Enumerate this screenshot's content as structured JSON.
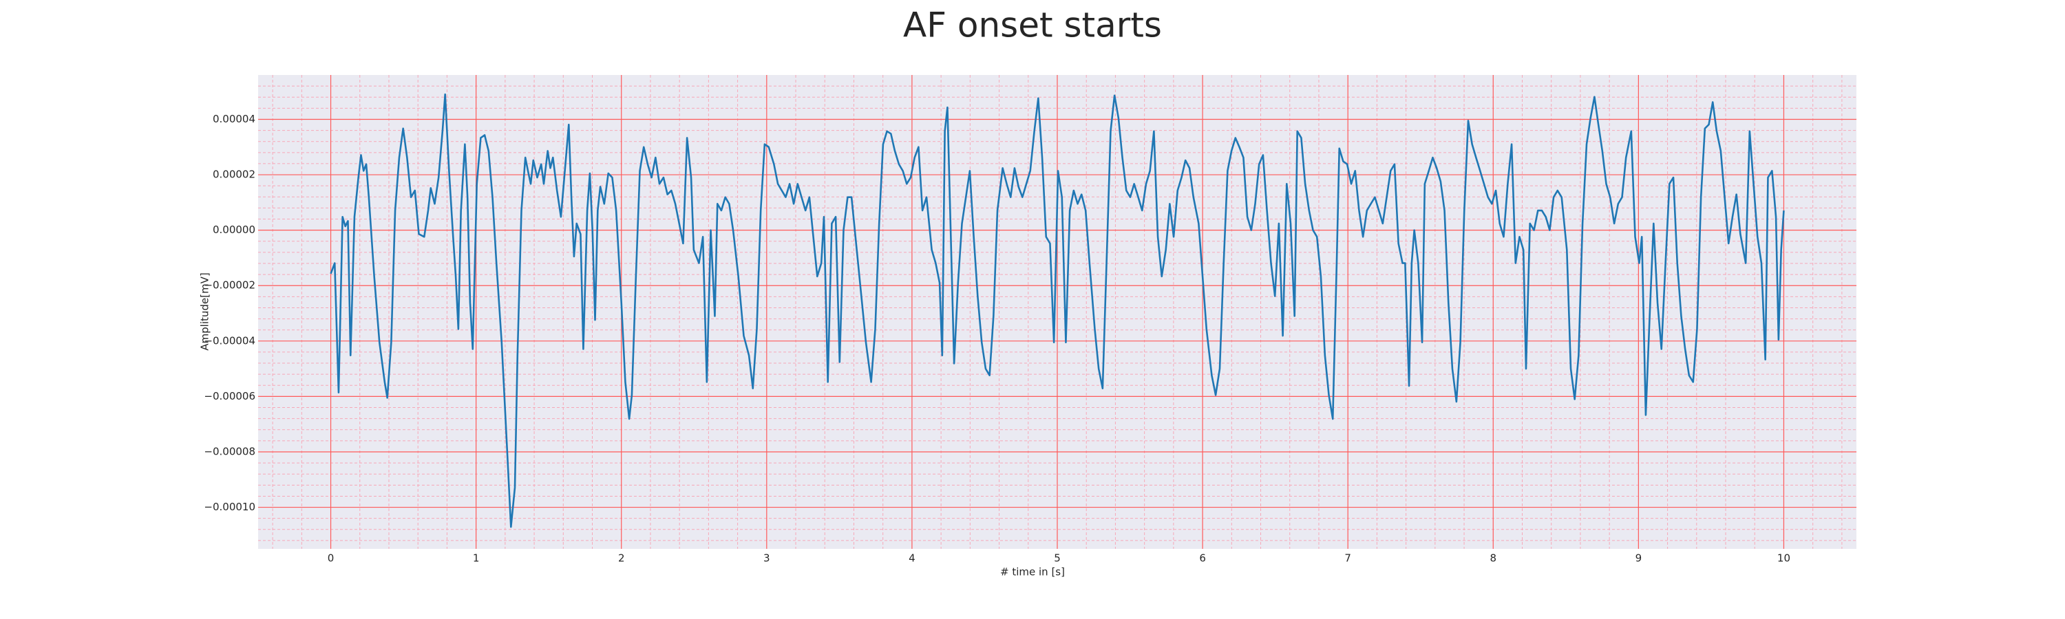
{
  "chart_data": {
    "type": "line",
    "title": "AF onset starts",
    "x_label": "# time in [s]",
    "y_label": "Amplitude[mV]",
    "color": "#1f77b4",
    "grid": true,
    "minor_grid": true,
    "xlim": [
      -0.5,
      10.5
    ],
    "ylim": [
      -0.000115,
      5.6e-05
    ],
    "xticks": [
      0,
      1,
      2,
      3,
      4,
      5,
      6,
      7,
      8,
      9,
      10
    ],
    "yticks": [
      {
        "value": 4e-05,
        "label": "0.00004"
      },
      {
        "value": 2e-05,
        "label": "0.00002"
      },
      {
        "value": 0,
        "label": "0.00000"
      },
      {
        "value": -2e-05,
        "label": "−0.00002"
      },
      {
        "value": -4e-05,
        "label": "−0.00004"
      },
      {
        "value": -6e-05,
        "label": "−0.00006"
      },
      {
        "value": -8e-05,
        "label": "−0.00008"
      },
      {
        "value": -0.0001,
        "label": "−0.00010"
      }
    ],
    "x": [
      0,
      0.027,
      0.054,
      0.081,
      0.1,
      0.118,
      0.136,
      0.163,
      0.19,
      0.208,
      0.226,
      0.244,
      0.262,
      0.299,
      0.335,
      0.371,
      0.389,
      0.416,
      0.443,
      0.471,
      0.498,
      0.525,
      0.552,
      0.579,
      0.606,
      0.643,
      0.67,
      0.688,
      0.715,
      0.742,
      0.769,
      0.787,
      0.814,
      0.842,
      0.86,
      0.878,
      0.896,
      0.923,
      0.941,
      0.959,
      0.977,
      1.005,
      1.032,
      1.059,
      1.086,
      1.113,
      1.14,
      1.176,
      1.213,
      1.24,
      1.267,
      1.285,
      1.312,
      1.339,
      1.357,
      1.376,
      1.394,
      1.421,
      1.448,
      1.466,
      1.493,
      1.511,
      1.529,
      1.557,
      1.584,
      1.611,
      1.638,
      1.656,
      1.674,
      1.692,
      1.719,
      1.738,
      1.765,
      1.783,
      1.801,
      1.819,
      1.837,
      1.855,
      1.882,
      1.91,
      1.937,
      1.964,
      2.0,
      2.027,
      2.054,
      2.072,
      2.1,
      2.127,
      2.154,
      2.181,
      2.208,
      2.235,
      2.262,
      2.29,
      2.317,
      2.344,
      2.371,
      2.398,
      2.425,
      2.452,
      2.48,
      2.498,
      2.534,
      2.561,
      2.588,
      2.615,
      2.643,
      2.661,
      2.688,
      2.715,
      2.742,
      2.769,
      2.805,
      2.842,
      2.878,
      2.905,
      2.932,
      2.959,
      2.986,
      3.014,
      3.05,
      3.077,
      3.104,
      3.131,
      3.158,
      3.186,
      3.213,
      3.24,
      3.267,
      3.294,
      3.321,
      3.348,
      3.376,
      3.394,
      3.421,
      3.448,
      3.475,
      3.502,
      3.529,
      3.557,
      3.584,
      3.611,
      3.647,
      3.683,
      3.719,
      3.747,
      3.774,
      3.801,
      3.828,
      3.855,
      3.882,
      3.91,
      3.937,
      3.964,
      3.991,
      4.018,
      4.045,
      4.072,
      4.1,
      4.136,
      4.163,
      4.19,
      4.208,
      4.226,
      4.244,
      4.271,
      4.29,
      4.317,
      4.344,
      4.371,
      4.398,
      4.425,
      4.452,
      4.48,
      4.507,
      4.534,
      4.561,
      4.588,
      4.624,
      4.652,
      4.679,
      4.706,
      4.733,
      4.76,
      4.787,
      4.814,
      4.842,
      4.869,
      4.896,
      4.923,
      4.95,
      4.977,
      5.005,
      5.032,
      5.059,
      5.086,
      5.113,
      5.14,
      5.167,
      5.195,
      5.222,
      5.258,
      5.285,
      5.312,
      5.339,
      5.367,
      5.394,
      5.421,
      5.448,
      5.475,
      5.502,
      5.529,
      5.557,
      5.584,
      5.611,
      5.638,
      5.665,
      5.692,
      5.719,
      5.747,
      5.774,
      5.801,
      5.828,
      5.855,
      5.882,
      5.91,
      5.937,
      5.973,
      6.0,
      6.027,
      6.063,
      6.09,
      6.118,
      6.145,
      6.172,
      6.199,
      6.226,
      6.253,
      6.281,
      6.308,
      6.335,
      6.362,
      6.389,
      6.416,
      6.443,
      6.471,
      6.498,
      6.525,
      6.552,
      6.579,
      6.606,
      6.633,
      6.652,
      6.679,
      6.706,
      6.733,
      6.76,
      6.787,
      6.814,
      6.842,
      6.869,
      6.896,
      6.923,
      6.941,
      6.968,
      6.995,
      7.023,
      7.05,
      7.077,
      7.104,
      7.131,
      7.158,
      7.186,
      7.213,
      7.24,
      7.267,
      7.294,
      7.321,
      7.348,
      7.376,
      7.394,
      7.421,
      7.439,
      7.457,
      7.484,
      7.511,
      7.529,
      7.557,
      7.584,
      7.611,
      7.638,
      7.665,
      7.692,
      7.719,
      7.747,
      7.774,
      7.801,
      7.828,
      7.855,
      7.882,
      7.91,
      7.937,
      7.964,
      7.991,
      8.018,
      8.045,
      8.072,
      8.1,
      8.127,
      8.154,
      8.181,
      8.208,
      8.226,
      8.253,
      8.281,
      8.308,
      8.335,
      8.362,
      8.389,
      8.416,
      8.443,
      8.471,
      8.507,
      8.534,
      8.561,
      8.588,
      8.615,
      8.643,
      8.67,
      8.697,
      8.724,
      8.751,
      8.778,
      8.805,
      8.833,
      8.86,
      8.887,
      8.914,
      8.95,
      8.977,
      9.005,
      9.023,
      9.05,
      9.077,
      9.104,
      9.131,
      9.158,
      9.186,
      9.213,
      9.24,
      9.267,
      9.294,
      9.321,
      9.348,
      9.376,
      9.403,
      9.43,
      9.457,
      9.484,
      9.511,
      9.538,
      9.566,
      9.593,
      9.62,
      9.647,
      9.674,
      9.701,
      9.738,
      9.765,
      9.792,
      9.819,
      9.846,
      9.873,
      9.891,
      9.919,
      9.946,
      9.964,
      9.982,
      10.0
    ],
    "values": [
      -1.57e-05,
      -1.19e-05,
      -5.86e-05,
      4.8e-06,
      1.4e-06,
      3.3e-06,
      -4.52e-05,
      4.8e-06,
      1.9e-05,
      2.71e-05,
      2.14e-05,
      2.38e-05,
      1.19e-05,
      -1.67e-05,
      -4.05e-05,
      -5.48e-05,
      -6.05e-05,
      -4.05e-05,
      7.1e-06,
      2.62e-05,
      3.67e-05,
      2.62e-05,
      1.19e-05,
      1.43e-05,
      -1.4e-06,
      -2.4e-06,
      7.1e-06,
      1.52e-05,
      9.5e-06,
      1.9e-05,
      3.57e-05,
      4.9e-05,
      2.14e-05,
      -2.4e-06,
      -1.67e-05,
      -3.57e-05,
      7.1e-06,
      3.1e-05,
      1.19e-05,
      -2.62e-05,
      -4.29e-05,
      1.67e-05,
      3.33e-05,
      3.43e-05,
      2.86e-05,
      1.19e-05,
      -1.19e-05,
      -4.05e-05,
      -7.86e-05,
      -0.0001071,
      -9.29e-05,
      -4.52e-05,
      7.1e-06,
      2.62e-05,
      2.14e-05,
      1.67e-05,
      2.52e-05,
      1.9e-05,
      2.38e-05,
      1.67e-05,
      2.86e-05,
      2.24e-05,
      2.62e-05,
      1.43e-05,
      4.8e-06,
      2.14e-05,
      3.81e-05,
      1.19e-05,
      -9.5e-06,
      2.4e-06,
      -1.4e-06,
      -4.29e-05,
      7.1e-06,
      2.05e-05,
      0,
      -3.24e-05,
      7.1e-06,
      1.57e-05,
      9.5e-06,
      2.05e-05,
      1.9e-05,
      7.1e-06,
      -2.62e-05,
      -5.48e-05,
      -6.81e-05,
      -5.95e-05,
      -1.67e-05,
      2.14e-05,
      3e-05,
      2.38e-05,
      1.9e-05,
      2.62e-05,
      1.67e-05,
      1.9e-05,
      1.29e-05,
      1.43e-05,
      9.5e-06,
      2.4e-06,
      -4.8e-06,
      3.33e-05,
      1.9e-05,
      -7.1e-06,
      -1.19e-05,
      -2.4e-06,
      -5.48e-05,
      0,
      -3.1e-05,
      9.5e-06,
      7.1e-06,
      1.19e-05,
      9.5e-06,
      0,
      -1.67e-05,
      -3.81e-05,
      -4.52e-05,
      -5.71e-05,
      -3.57e-05,
      7.1e-06,
      3.1e-05,
      3e-05,
      2.38e-05,
      1.67e-05,
      1.43e-05,
      1.19e-05,
      1.67e-05,
      9.5e-06,
      1.67e-05,
      1.19e-05,
      7.1e-06,
      1.19e-05,
      -2.4e-06,
      -1.67e-05,
      -1.19e-05,
      4.8e-06,
      -5.48e-05,
      2.4e-06,
      4.8e-06,
      -4.76e-05,
      0,
      1.19e-05,
      1.19e-05,
      -2.4e-06,
      -2.14e-05,
      -4.05e-05,
      -5.48e-05,
      -3.57e-05,
      2.4e-06,
      3.1e-05,
      3.57e-05,
      3.48e-05,
      2.86e-05,
      2.38e-05,
      2.14e-05,
      1.67e-05,
      1.9e-05,
      2.62e-05,
      3e-05,
      7.1e-06,
      1.19e-05,
      -7.1e-06,
      -1.19e-05,
      -1.9e-05,
      -4.52e-05,
      3.57e-05,
      4.43e-05,
      -9.5e-06,
      -4.81e-05,
      -1.9e-05,
      2.4e-06,
      1.19e-05,
      2.14e-05,
      -2.4e-06,
      -2.38e-05,
      -4.05e-05,
      -5e-05,
      -5.24e-05,
      -3.1e-05,
      7.1e-06,
      2.24e-05,
      1.67e-05,
      1.19e-05,
      2.24e-05,
      1.57e-05,
      1.19e-05,
      1.67e-05,
      2.14e-05,
      3.57e-05,
      4.76e-05,
      2.62e-05,
      -2.4e-06,
      -4.8e-06,
      -4.05e-05,
      2.14e-05,
      1.19e-05,
      -4.05e-05,
      7.1e-06,
      1.43e-05,
      9.5e-06,
      1.29e-05,
      7.1e-06,
      -1.19e-05,
      -3.57e-05,
      -5e-05,
      -5.71e-05,
      -1.19e-05,
      3.57e-05,
      4.86e-05,
      4.05e-05,
      2.62e-05,
      1.43e-05,
      1.19e-05,
      1.67e-05,
      1.19e-05,
      7.1e-06,
      1.67e-05,
      2.14e-05,
      3.57e-05,
      -2.4e-06,
      -1.67e-05,
      -7.1e-06,
      9.5e-06,
      -2.4e-06,
      1.43e-05,
      1.9e-05,
      2.52e-05,
      2.24e-05,
      1.19e-05,
      2.4e-06,
      -1.67e-05,
      -3.57e-05,
      -5.24e-05,
      -5.95e-05,
      -5e-05,
      -1.19e-05,
      2.14e-05,
      2.86e-05,
      3.33e-05,
      3e-05,
      2.62e-05,
      4.8e-06,
      0,
      9.5e-06,
      2.38e-05,
      2.71e-05,
      7.1e-06,
      -1.19e-05,
      -2.38e-05,
      2.4e-06,
      -3.81e-05,
      1.67e-05,
      2.4e-06,
      -3.1e-05,
      3.57e-05,
      3.33e-05,
      1.67e-05,
      7.1e-06,
      0,
      -2.4e-06,
      -1.67e-05,
      -4.52e-05,
      -5.95e-05,
      -6.81e-05,
      -1.19e-05,
      2.95e-05,
      2.48e-05,
      2.38e-05,
      1.67e-05,
      2.14e-05,
      7.1e-06,
      -2.4e-06,
      7.1e-06,
      9.5e-06,
      1.19e-05,
      7.1e-06,
      2.4e-06,
      1.19e-05,
      2.14e-05,
      2.38e-05,
      -4.8e-06,
      -1.19e-05,
      -1.19e-05,
      -5.62e-05,
      -1.19e-05,
      0,
      -1.19e-05,
      -4.05e-05,
      1.67e-05,
      2.14e-05,
      2.62e-05,
      2.24e-05,
      1.76e-05,
      7.1e-06,
      -2.62e-05,
      -5e-05,
      -6.19e-05,
      -4.05e-05,
      7.1e-06,
      3.95e-05,
      3.1e-05,
      2.62e-05,
      2.14e-05,
      1.67e-05,
      1.19e-05,
      9.5e-06,
      1.43e-05,
      2.4e-06,
      -2.4e-06,
      1.67e-05,
      3.1e-05,
      -1.19e-05,
      -2.4e-06,
      -7.1e-06,
      -5e-05,
      2.4e-06,
      0,
      7.1e-06,
      7.1e-06,
      4.8e-06,
      0,
      1.19e-05,
      1.43e-05,
      1.19e-05,
      -7.1e-06,
      -5e-05,
      -6.1e-05,
      -4.52e-05,
      2.4e-06,
      3.1e-05,
      4.05e-05,
      4.81e-05,
      3.81e-05,
      2.86e-05,
      1.67e-05,
      1.19e-05,
      2.4e-06,
      9.5e-06,
      1.19e-05,
      2.62e-05,
      3.57e-05,
      -2.4e-06,
      -1.19e-05,
      -2.4e-06,
      -6.67e-05,
      -3.1e-05,
      2.4e-06,
      -2.62e-05,
      -4.29e-05,
      -1.19e-05,
      1.67e-05,
      1.9e-05,
      -1.19e-05,
      -3.1e-05,
      -4.29e-05,
      -5.24e-05,
      -5.48e-05,
      -3.57e-05,
      1.19e-05,
      3.67e-05,
      3.81e-05,
      4.62e-05,
      3.57e-05,
      2.86e-05,
      1.19e-05,
      -4.8e-06,
      4.8e-06,
      1.29e-05,
      -1.4e-06,
      -1.19e-05,
      3.57e-05,
      1.67e-05,
      -2.4e-06,
      -1.19e-05,
      -4.67e-05,
      1.9e-05,
      2.14e-05,
      4.8e-06,
      -3.95e-05,
      -7.1e-06,
      7.1e-06
    ]
  }
}
